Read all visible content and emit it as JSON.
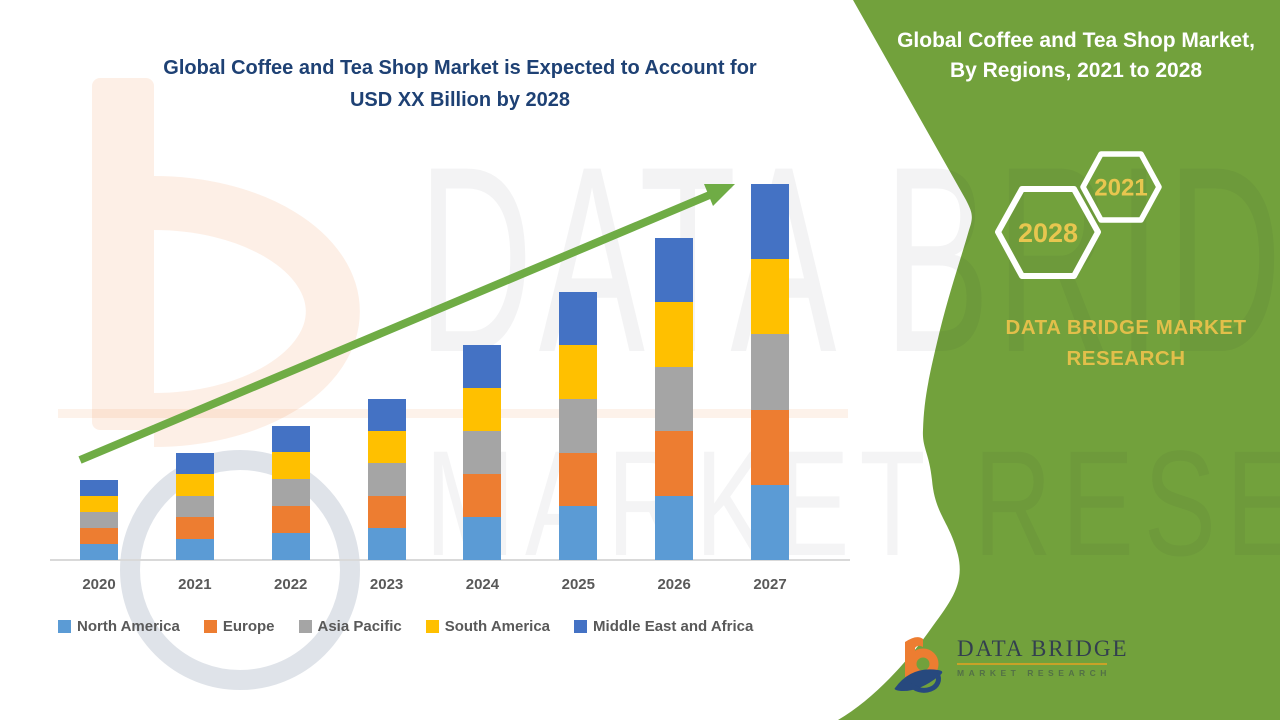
{
  "title": {
    "line1": "Global Coffee and Tea Shop Market is Expected to Account for",
    "line2": "USD XX Billion by 2028"
  },
  "side_panel": {
    "heading_line1": "Global Coffee and Tea Shop Market,",
    "heading_line2": "By Regions, 2021 to 2028",
    "hexagons": [
      {
        "label": "2028"
      },
      {
        "label": "2021"
      }
    ],
    "brand_line1": "DATA BRIDGE MARKET",
    "brand_line2": "RESEARCH",
    "panel_color": "#72A13C",
    "gold_color": "#E2BF4A"
  },
  "watermark": {
    "line1": "DATA BRIDGE",
    "line2": "MARKET RESEARCH"
  },
  "logo": {
    "name": "DATA BRIDGE",
    "tagline": "MARKET RESEARCH"
  },
  "chart_data": {
    "type": "bar",
    "stacked": true,
    "title": "Global Coffee and Tea Shop Market, By Regions, 2021 to 2028",
    "categories": [
      "2020",
      "2021",
      "2022",
      "2023",
      "2024",
      "2025",
      "2026",
      "2027"
    ],
    "series": [
      {
        "name": "North America",
        "color": "#5B9BD5",
        "values": [
          0.6,
          0.8,
          1.0,
          1.2,
          1.6,
          2.0,
          2.4,
          2.8
        ]
      },
      {
        "name": "Europe",
        "color": "#ED7D31",
        "values": [
          0.6,
          0.8,
          1.0,
          1.2,
          1.6,
          2.0,
          2.4,
          2.8
        ]
      },
      {
        "name": "Asia Pacific",
        "color": "#A5A5A5",
        "values": [
          0.6,
          0.8,
          1.0,
          1.2,
          1.6,
          2.0,
          2.4,
          2.8
        ]
      },
      {
        "name": "South America",
        "color": "#FFC000",
        "values": [
          0.6,
          0.8,
          1.0,
          1.2,
          1.6,
          2.0,
          2.4,
          2.8
        ]
      },
      {
        "name": "Middle East and Africa",
        "color": "#4472C4",
        "values": [
          0.6,
          0.8,
          1.0,
          1.2,
          1.6,
          2.0,
          2.4,
          2.8
        ]
      }
    ],
    "totals": [
      3,
      4,
      5,
      6,
      8,
      10,
      12,
      14
    ],
    "value_axis": "hidden — no y-axis labels shown, values are relative units (USD XX Billion undisclosed)",
    "grid": false,
    "legend_position": "bottom",
    "trend_arrow": {
      "present": true,
      "color": "#6FAC45",
      "direction": "up-right"
    },
    "xlabel": "",
    "ylabel": ""
  }
}
